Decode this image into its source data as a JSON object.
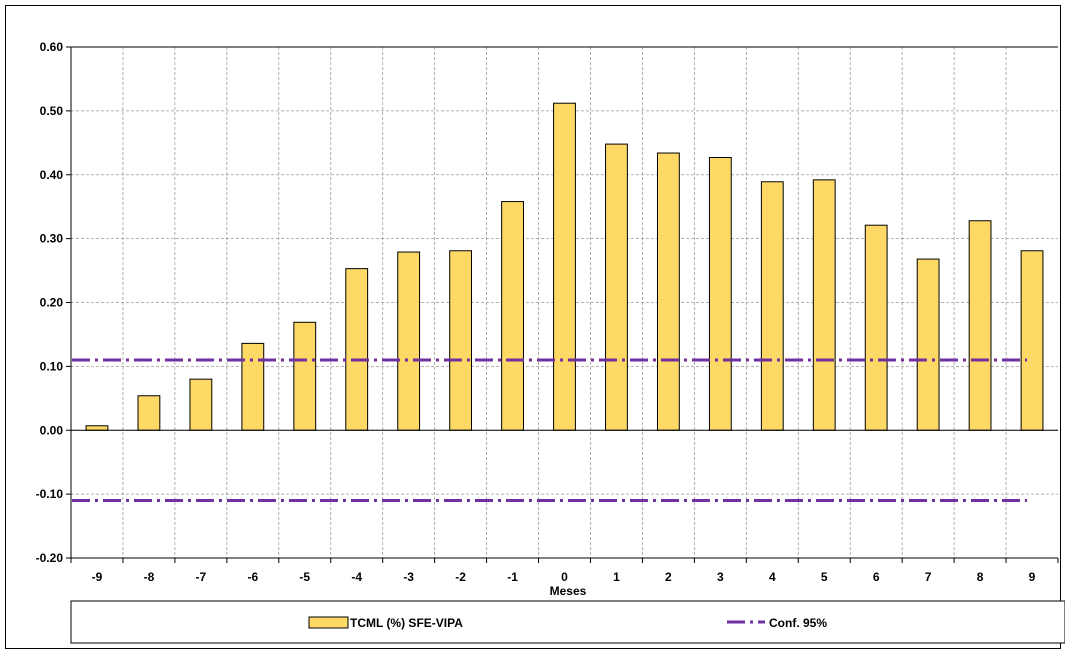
{
  "chart_data": {
    "type": "bar",
    "title": "",
    "xlabel": "Meses",
    "ylabel": "",
    "categories": [
      "-9",
      "-8",
      "-7",
      "-6",
      "-5",
      "-4",
      "-3",
      "-2",
      "-1",
      "0",
      "1",
      "2",
      "3",
      "4",
      "5",
      "6",
      "7",
      "8",
      "9"
    ],
    "series": [
      {
        "name": "TCML (%) SFE-VIPA",
        "type": "bar",
        "color": "#FFD966",
        "values": [
          0.007,
          0.054,
          0.08,
          0.136,
          0.169,
          0.253,
          0.279,
          0.281,
          0.358,
          0.512,
          0.448,
          0.434,
          0.427,
          0.389,
          0.392,
          0.321,
          0.268,
          0.328,
          0.281
        ]
      },
      {
        "name": "Conf. 95%",
        "type": "line",
        "style": "dash-dot",
        "color": "#7030A0",
        "upper": 0.11,
        "lower": -0.11
      }
    ],
    "ylim": [
      -0.2,
      0.6
    ],
    "yticks": [
      "-0.20",
      "-0.10",
      "0.00",
      "0.10",
      "0.20",
      "0.30",
      "0.40",
      "0.50",
      "0.60"
    ],
    "grid": true,
    "legend_position": "bottom"
  }
}
